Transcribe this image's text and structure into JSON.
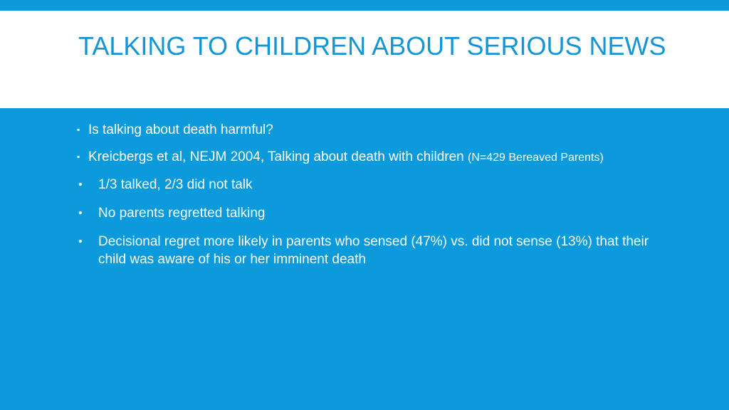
{
  "slide": {
    "title": "TALKING TO CHILDREN ABOUT SERIOUS NEWS",
    "bullets": [
      {
        "text": "Is talking about death harmful?"
      },
      {
        "text": "Kreicbergs et al, NEJM 2004, Talking about death with children ",
        "small": "(N=429 Bereaved Parents)"
      },
      {
        "text": "1/3 talked, 2/3 did not talk"
      },
      {
        "text": "No parents regretted talking"
      },
      {
        "text": "Decisional regret more likely in parents who sensed (47%) vs. did not sense (13%) that their child was aware of his or her imminent death"
      }
    ]
  },
  "colors": {
    "background": "#0b9bdc",
    "title_band": "#ffffff",
    "title_text": "#1496d6",
    "body_text": "#ffffff"
  }
}
